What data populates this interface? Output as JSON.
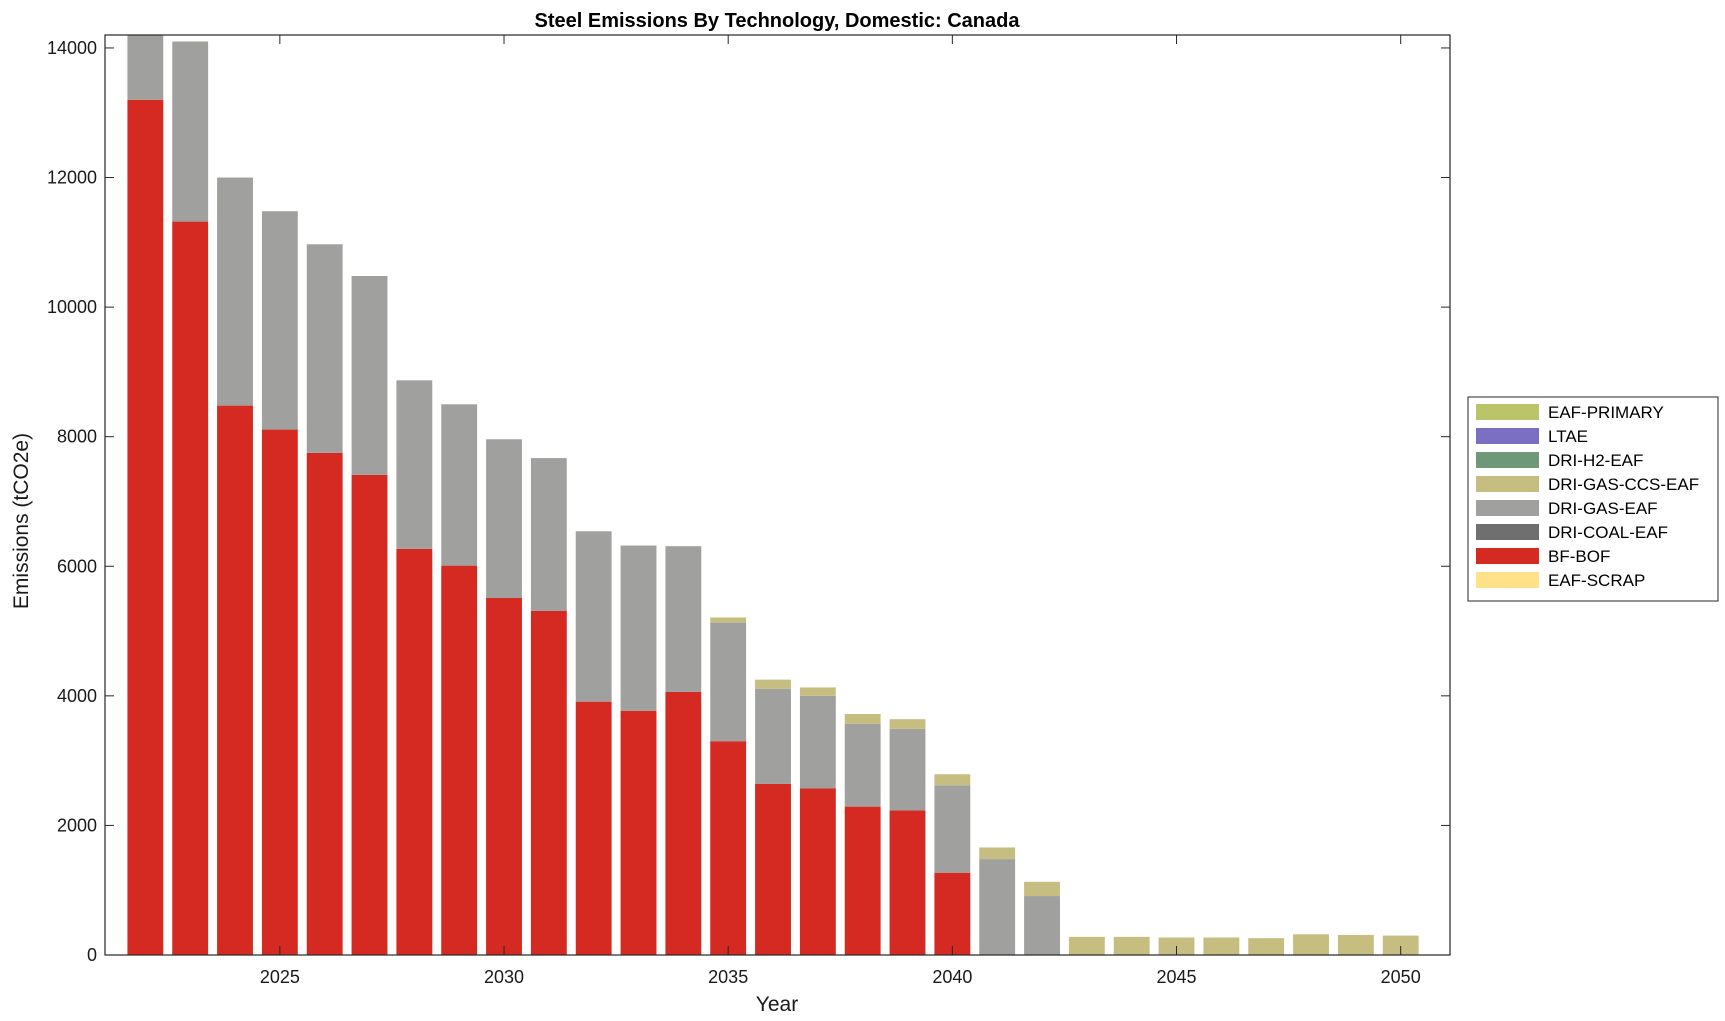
{
  "chart_data": {
    "type": "bar",
    "stacked": true,
    "title": "Steel Emissions By Technology, Domestic: Canada",
    "xlabel": "Year",
    "ylabel": "Emissions (tCO2e)",
    "xlim": [
      2021.1,
      2051.1
    ],
    "ylim": [
      0,
      14200
    ],
    "xticks": [
      2025,
      2030,
      2035,
      2040,
      2045,
      2050
    ],
    "yticks": [
      0,
      2000,
      4000,
      6000,
      8000,
      10000,
      12000,
      14000
    ],
    "grid": false,
    "legend_position": "right",
    "x": [
      2022,
      2023,
      2024,
      2025,
      2026,
      2027,
      2028,
      2029,
      2030,
      2031,
      2032,
      2033,
      2034,
      2035,
      2036,
      2037,
      2038,
      2039,
      2040,
      2041,
      2042,
      2043,
      2044,
      2045,
      2046,
      2047,
      2048,
      2049,
      2050
    ],
    "series": [
      {
        "name": "EAF-SCRAP",
        "color": "#ffe28a",
        "values": [
          0,
          0,
          0,
          0,
          0,
          0,
          0,
          0,
          0,
          0,
          0,
          0,
          0,
          0,
          0,
          0,
          0,
          0,
          0,
          0,
          0,
          0,
          0,
          0,
          0,
          0,
          0,
          0,
          0
        ]
      },
      {
        "name": "BF-BOF",
        "color": "#d42a22",
        "values": [
          13200,
          11320,
          8480,
          8110,
          7750,
          7410,
          6270,
          6010,
          5510,
          5310,
          3910,
          3770,
          4060,
          3300,
          2640,
          2570,
          2290,
          2230,
          1270,
          0,
          0,
          0,
          0,
          0,
          0,
          0,
          0,
          0,
          0
        ]
      },
      {
        "name": "DRI-COAL-EAF",
        "color": "#6f6f6f",
        "values": [
          0,
          0,
          0,
          0,
          0,
          0,
          0,
          0,
          0,
          0,
          0,
          0,
          0,
          0,
          0,
          0,
          0,
          0,
          0,
          0,
          0,
          0,
          0,
          0,
          0,
          0,
          0,
          0,
          0
        ]
      },
      {
        "name": "DRI-GAS-EAF",
        "color": "#a0a09e",
        "values": [
          1000,
          2780,
          3520,
          3370,
          3220,
          3070,
          2600,
          2490,
          2450,
          2360,
          2630,
          2550,
          2250,
          1830,
          1470,
          1430,
          1280,
          1260,
          1350,
          1480,
          910,
          0,
          0,
          0,
          0,
          0,
          0,
          0,
          0
        ]
      },
      {
        "name": "DRI-GAS-CCS-EAF",
        "color": "#c6be80",
        "values": [
          0,
          0,
          0,
          0,
          0,
          0,
          0,
          0,
          0,
          0,
          0,
          0,
          0,
          80,
          140,
          130,
          150,
          150,
          170,
          180,
          220,
          280,
          280,
          270,
          270,
          260,
          320,
          310,
          300
        ]
      },
      {
        "name": "DRI-H2-EAF",
        "color": "#6f9878",
        "values": [
          0,
          0,
          0,
          0,
          0,
          0,
          0,
          0,
          0,
          0,
          0,
          0,
          0,
          0,
          0,
          0,
          0,
          0,
          0,
          0,
          0,
          0,
          0,
          0,
          0,
          0,
          0,
          0,
          0
        ]
      },
      {
        "name": "LTAE",
        "color": "#7a6fc2",
        "values": [
          0,
          0,
          0,
          0,
          0,
          0,
          0,
          0,
          0,
          0,
          0,
          0,
          0,
          0,
          0,
          0,
          0,
          0,
          0,
          0,
          0,
          0,
          0,
          0,
          0,
          0,
          0,
          0,
          0
        ]
      },
      {
        "name": "EAF-PRIMARY",
        "color": "#bcc46a",
        "values": [
          0,
          0,
          0,
          0,
          0,
          0,
          0,
          0,
          0,
          0,
          0,
          0,
          0,
          0,
          0,
          0,
          0,
          0,
          0,
          0,
          0,
          0,
          0,
          0,
          0,
          0,
          0,
          0,
          0
        ]
      }
    ],
    "legend_order": [
      "EAF-PRIMARY",
      "LTAE",
      "DRI-H2-EAF",
      "DRI-GAS-CCS-EAF",
      "DRI-GAS-EAF",
      "DRI-COAL-EAF",
      "BF-BOF",
      "EAF-SCRAP"
    ]
  }
}
